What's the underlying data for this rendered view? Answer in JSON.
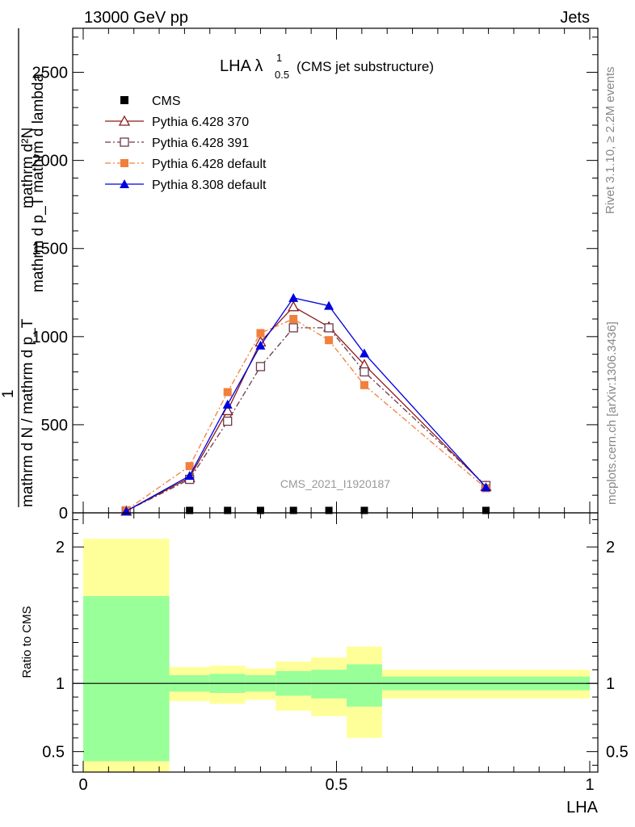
{
  "header": {
    "left": "13000 GeV pp",
    "right": "Jets"
  },
  "side_labels": {
    "rivet": "Rivet 3.1.10, ≥ 2.2M events",
    "mcplots": "mcplots.cern.ch [arXiv:1306.3436]"
  },
  "watermark": "CMS_2021_I1920187",
  "chart_data": [
    {
      "type": "line",
      "title_main": "LHA λ",
      "title_sup": "1",
      "title_sub": "0.5",
      "title_rest": "(CMS jet substructure)",
      "ylabel_numerator": "mathrm d²N",
      "ylabel_numerator_extra": "mathrm d p_T mathrm d lambda",
      "ylabel_one": "1",
      "ylabel_denominator": "mathrm d N / mathrm d p_T",
      "xlim": [
        0,
        1
      ],
      "ylim": [
        0,
        2750
      ],
      "y_ticks": [
        0,
        500,
        1000,
        1500,
        2000,
        2500
      ],
      "y_tick_labels": [
        "0",
        "500",
        "1000",
        "1500",
        "2000",
        "2500"
      ],
      "series": [
        {
          "name": "CMS",
          "color": "#000000",
          "marker": "filled-square",
          "line": "none",
          "x": [
            0.085,
            0.21,
            0.285,
            0.35,
            0.415,
            0.485,
            0.555,
            0.795
          ],
          "y": [
            0,
            0,
            0,
            0,
            0,
            0,
            0,
            0
          ]
        },
        {
          "name": "Pythia 6.428 370",
          "color": "#8b1a1a",
          "marker": "open-triangle",
          "line": "solid",
          "x": [
            0.085,
            0.21,
            0.285,
            0.35,
            0.415,
            0.485,
            0.555,
            0.795
          ],
          "y": [
            10,
            200,
            580,
            970,
            1170,
            1055,
            840,
            150
          ]
        },
        {
          "name": "Pythia 6.428 391",
          "color": "#6b3a4a",
          "marker": "open-square",
          "line": "dashdot",
          "x": [
            0.085,
            0.21,
            0.285,
            0.35,
            0.415,
            0.485,
            0.555,
            0.795
          ],
          "y": [
            10,
            190,
            520,
            830,
            1050,
            1050,
            800,
            155
          ]
        },
        {
          "name": "Pythia 6.428 default",
          "color": "#f0803c",
          "marker": "filled-square",
          "line": "dashdot",
          "x": [
            0.085,
            0.21,
            0.285,
            0.35,
            0.415,
            0.485,
            0.555,
            0.795
          ],
          "y": [
            15,
            265,
            685,
            1020,
            1100,
            980,
            725,
            140
          ]
        },
        {
          "name": "Pythia 8.308 default",
          "color": "#0000dd",
          "marker": "filled-triangle",
          "line": "solid",
          "x": [
            0.085,
            0.21,
            0.285,
            0.35,
            0.415,
            0.485,
            0.555,
            0.795
          ],
          "y": [
            10,
            210,
            615,
            950,
            1220,
            1175,
            905,
            145
          ]
        }
      ]
    },
    {
      "type": "area",
      "ylabel": "Ratio to CMS",
      "xlabel": "LHA",
      "xlim": [
        0,
        1
      ],
      "ylim": [
        0.35,
        2.25
      ],
      "y_ticks": [
        0.5,
        1,
        2
      ],
      "y_tick_labels": [
        "0.5",
        "1",
        "2"
      ],
      "x_ticks": [
        0,
        0.5,
        1
      ],
      "x_tick_labels": [
        "0",
        "0.5",
        "1"
      ],
      "reference": 1,
      "bands": [
        {
          "x0": 0.0,
          "x1": 0.17,
          "inner": [
            0.43,
            1.64
          ],
          "outer": [
            0.35,
            2.06
          ]
        },
        {
          "x0": 0.17,
          "x1": 0.25,
          "inner": [
            0.94,
            1.06
          ],
          "outer": [
            0.87,
            1.12
          ]
        },
        {
          "x0": 0.25,
          "x1": 0.32,
          "inner": [
            0.93,
            1.07
          ],
          "outer": [
            0.85,
            1.13
          ]
        },
        {
          "x0": 0.32,
          "x1": 0.38,
          "inner": [
            0.94,
            1.06
          ],
          "outer": [
            0.88,
            1.11
          ]
        },
        {
          "x0": 0.38,
          "x1": 0.45,
          "inner": [
            0.91,
            1.09
          ],
          "outer": [
            0.8,
            1.16
          ]
        },
        {
          "x0": 0.45,
          "x1": 0.52,
          "inner": [
            0.89,
            1.1
          ],
          "outer": [
            0.76,
            1.19
          ]
        },
        {
          "x0": 0.52,
          "x1": 0.59,
          "inner": [
            0.83,
            1.14
          ],
          "outer": [
            0.6,
            1.27
          ]
        },
        {
          "x0": 0.59,
          "x1": 1.0,
          "inner": [
            0.95,
            1.05
          ],
          "outer": [
            0.89,
            1.1
          ]
        }
      ],
      "inner_color": "#99ff99",
      "outer_color": "#ffff99"
    }
  ]
}
